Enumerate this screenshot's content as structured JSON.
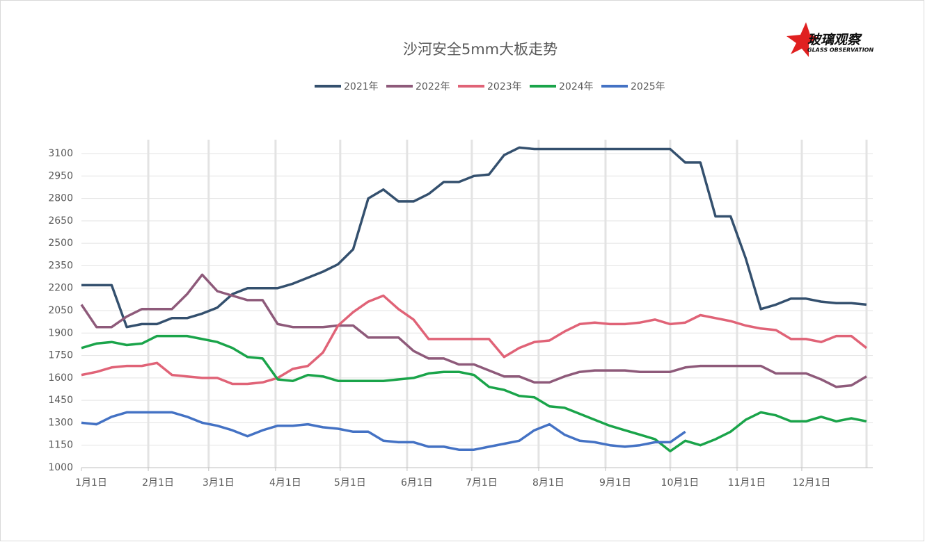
{
  "logo": {
    "title": "玻璃观察",
    "subtitle": "GLASS OBSERVATION"
  },
  "chart_data": {
    "type": "line",
    "title": "沙河安全5mm大板走势",
    "x": [
      0,
      7,
      14,
      21,
      28,
      35,
      42,
      49,
      56,
      63,
      70,
      77,
      84,
      91,
      98,
      105,
      112,
      119,
      126,
      133,
      140,
      147,
      154,
      161,
      168,
      175,
      182,
      189,
      196,
      203,
      210,
      217,
      224,
      231,
      238,
      245,
      252,
      259,
      266,
      273,
      280,
      287,
      294,
      301,
      308,
      315,
      322,
      329,
      336,
      343,
      350,
      357,
      364
    ],
    "xlim": [
      0,
      365
    ],
    "xticks": [
      {
        "value": 0,
        "label": "1月1日"
      },
      {
        "value": 31,
        "label": "2月1日"
      },
      {
        "value": 59,
        "label": "3月1日"
      },
      {
        "value": 90,
        "label": "4月1日"
      },
      {
        "value": 120,
        "label": "5月1日"
      },
      {
        "value": 151,
        "label": "6月1日"
      },
      {
        "value": 181,
        "label": "7月1日"
      },
      {
        "value": 212,
        "label": "8月1日"
      },
      {
        "value": 243,
        "label": "9月1日"
      },
      {
        "value": 273,
        "label": "10月1日"
      },
      {
        "value": 304,
        "label": "11月1日"
      },
      {
        "value": 334,
        "label": "12月1日"
      }
    ],
    "ylim": [
      1000,
      3100
    ],
    "yticks": [
      1000,
      1150,
      1300,
      1450,
      1600,
      1750,
      1900,
      2050,
      2200,
      2350,
      2500,
      2650,
      2800,
      2950,
      3100
    ],
    "grid": true,
    "legend": "top",
    "series": [
      {
        "name": "2021年",
        "color": "#34506e",
        "values": [
          2220,
          2220,
          2220,
          1940,
          1960,
          1960,
          2000,
          2000,
          2030,
          2070,
          2160,
          2200,
          2200,
          2200,
          2230,
          2270,
          2310,
          2360,
          2460,
          2800,
          2860,
          2780,
          2780,
          2830,
          2910,
          2910,
          2950,
          2960,
          3090,
          3140,
          3130,
          3130,
          3130,
          3130,
          3130,
          3130,
          3130,
          3130,
          3130,
          3130,
          3040,
          3040,
          2680,
          2680,
          2400,
          2060,
          2090,
          2130,
          2130,
          2110,
          2100,
          2100,
          2090
        ]
      },
      {
        "name": "2022年",
        "color": "#8e5a7a",
        "values": [
          2090,
          1940,
          1940,
          2010,
          2060,
          2060,
          2060,
          2160,
          2290,
          2180,
          2150,
          2120,
          2120,
          1960,
          1940,
          1940,
          1940,
          1950,
          1950,
          1870,
          1870,
          1870,
          1780,
          1730,
          1730,
          1690,
          1690,
          1650,
          1610,
          1610,
          1570,
          1570,
          1610,
          1640,
          1650,
          1650,
          1650,
          1640,
          1640,
          1640,
          1670,
          1680,
          1680,
          1680,
          1680,
          1680,
          1630,
          1630,
          1630,
          1590,
          1540,
          1550,
          1610
        ]
      },
      {
        "name": "2023年",
        "color": "#e06377",
        "values": [
          1620,
          1640,
          1670,
          1680,
          1680,
          1700,
          1620,
          1610,
          1600,
          1600,
          1560,
          1560,
          1570,
          1600,
          1660,
          1680,
          1770,
          1950,
          2040,
          2110,
          2150,
          2060,
          1990,
          1860,
          1860,
          1860,
          1860,
          1860,
          1740,
          1800,
          1840,
          1850,
          1910,
          1960,
          1970,
          1960,
          1960,
          1970,
          1990,
          1960,
          1970,
          2020,
          2000,
          1980,
          1950,
          1930,
          1920,
          1860,
          1860,
          1840,
          1880,
          1880,
          1800
        ]
      },
      {
        "name": "2024年",
        "color": "#1aa44a",
        "values": [
          1800,
          1830,
          1840,
          1820,
          1830,
          1880,
          1880,
          1880,
          1860,
          1840,
          1800,
          1740,
          1730,
          1590,
          1580,
          1620,
          1610,
          1580,
          1580,
          1580,
          1580,
          1590,
          1600,
          1630,
          1640,
          1640,
          1620,
          1540,
          1520,
          1480,
          1470,
          1410,
          1400,
          1360,
          1320,
          1280,
          1250,
          1220,
          1190,
          1110,
          1180,
          1150,
          1190,
          1240,
          1320,
          1370,
          1350,
          1310,
          1310,
          1340,
          1310,
          1330,
          1310
        ]
      },
      {
        "name": "2025年",
        "color": "#4472c4",
        "values": [
          1300,
          1290,
          1340,
          1370,
          1370,
          1370,
          1370,
          1340,
          1300,
          1280,
          1250,
          1210,
          1250,
          1280,
          1280,
          1290,
          1270,
          1260,
          1240,
          1240,
          1180,
          1170,
          1170,
          1140,
          1140,
          1120,
          1120,
          1140,
          1160,
          1180,
          1250,
          1290,
          1220,
          1180,
          1170,
          1150,
          1140,
          1150,
          1170,
          1170,
          1240,
          null,
          null,
          null,
          null,
          null,
          null,
          null,
          null,
          null,
          null,
          null,
          null
        ]
      }
    ]
  }
}
